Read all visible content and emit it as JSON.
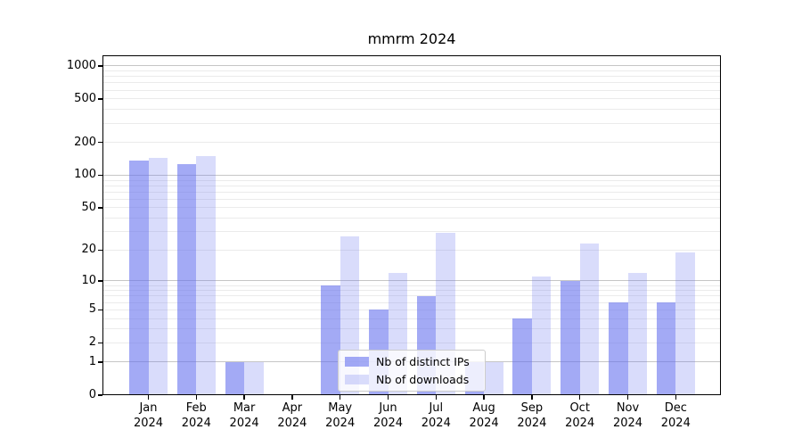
{
  "chart_data": {
    "type": "bar",
    "title": "mmrm 2024",
    "categories": [
      "Jan 2024",
      "Feb 2024",
      "Mar 2024",
      "Apr 2024",
      "May 2024",
      "Jun 2024",
      "Jul 2024",
      "Aug 2024",
      "Sep 2024",
      "Oct 2024",
      "Nov 2024",
      "Dec 2024"
    ],
    "series": [
      {
        "name": "Nb of distinct IPs",
        "color": "rgba(102,114,238,0.6)",
        "values": [
          136,
          127,
          1,
          0,
          9,
          5,
          7,
          1,
          4,
          10,
          6,
          6
        ]
      },
      {
        "name": "Nb of downloads",
        "color": "rgba(102,114,238,0.25)",
        "values": [
          144,
          149,
          1,
          0,
          27,
          12,
          29,
          1,
          11,
          23,
          12,
          19
        ]
      }
    ],
    "y_scale": "log1p",
    "y_ticks": [
      1000,
      500,
      200,
      100,
      50,
      20,
      10,
      5,
      2,
      1,
      0
    ],
    "ylim": [
      0,
      1250
    ],
    "xlabel": "",
    "ylabel": "",
    "grid": true,
    "legend_position": "lower center (inside plot)"
  },
  "colors": {
    "bar_dark": "rgba(102,114,238,0.6)",
    "bar_light": "rgba(102,114,238,0.25)",
    "grid_major": "#c6c6c6",
    "grid_minor": "#ebebeb",
    "spine": "#000000",
    "legend_border": "#cccccc"
  }
}
